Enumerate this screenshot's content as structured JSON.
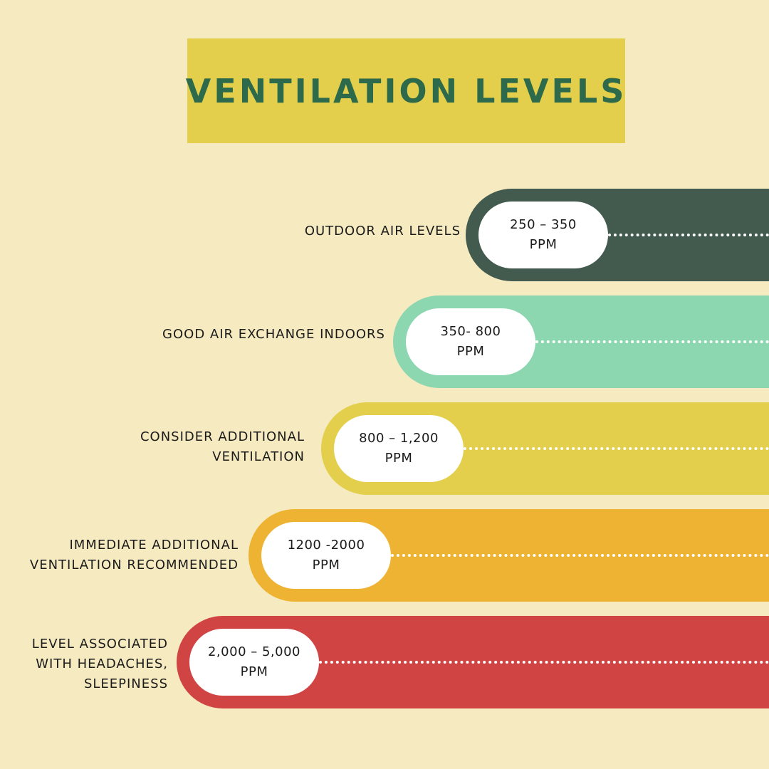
{
  "title": "VENTILATION LEVELS",
  "levels": [
    {
      "label": "OUTDOOR AIR LEVELS",
      "range": "250 – 350\nPPM",
      "color": "#435a4e"
    },
    {
      "label": "GOOD AIR EXCHANGE INDOORS",
      "range": "350- 800\nPPM",
      "color": "#8dd7b0"
    },
    {
      "label": "CONSIDER ADDITIONAL\nVENTILATION",
      "range": "800 – 1,200\nPPM",
      "color": "#e3cf4b"
    },
    {
      "label": "IMMEDIATE ADDITIONAL\nVENTILATION RECOMMENDED",
      "range": "1200 -2000\nPPM",
      "color": "#efb334"
    },
    {
      "label": "LEVEL ASSOCIATED\nWITH HEADACHES,\nSLEEPINESS",
      "range": "2,000 – 5,000\nPPM",
      "color": "#d14444"
    }
  ]
}
